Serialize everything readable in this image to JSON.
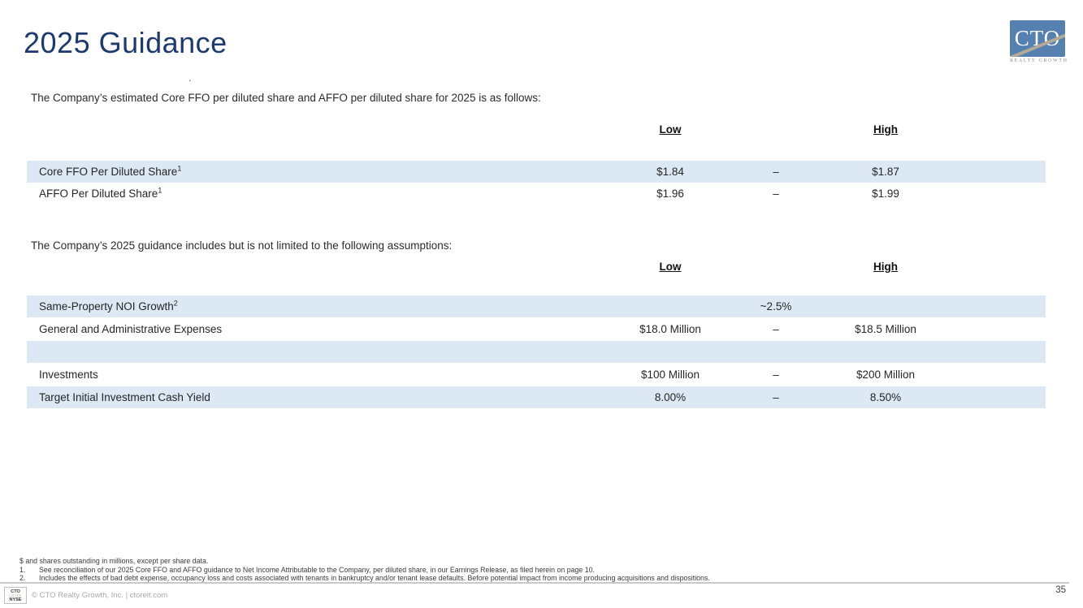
{
  "slide": {
    "title": "2025 Guidance",
    "page_number": "35",
    "stray_mark": "."
  },
  "logo": {
    "text": "CTO",
    "subtext": "REALTY GROWTH",
    "box_color": "#5580b0",
    "stripe_color": "#b3a999"
  },
  "section1": {
    "intro": "The Company’s estimated Core FFO per diluted share and AFFO per diluted share for 2025 is as follows:",
    "columns": {
      "low": "Low",
      "high": "High"
    },
    "rows": [
      {
        "label": "Core FFO Per Diluted Share",
        "sup": "1",
        "low": "$1.84",
        "dash": "–",
        "high": "$1.87"
      },
      {
        "label": "AFFO Per Diluted Share",
        "sup": "1",
        "low": "$1.96",
        "dash": "–",
        "high": "$1.99"
      }
    ]
  },
  "section2": {
    "intro": "The Company’s 2025 guidance includes but is not limited to the following assumptions:",
    "columns": {
      "low": "Low",
      "high": "High"
    },
    "rows": [
      {
        "label": "Same-Property NOI Growth",
        "sup": "2",
        "low": "",
        "dash": "~2.5%",
        "high": ""
      },
      {
        "label": "General and Administrative Expenses",
        "sup": "",
        "low": "$18.0 Million",
        "dash": "–",
        "high": "$18.5 Million"
      },
      {
        "label": "",
        "sup": "",
        "low": "",
        "dash": "",
        "high": ""
      },
      {
        "label": "Investments",
        "sup": "",
        "low": "$100 Million",
        "dash": "–",
        "high": "$200 Million"
      },
      {
        "label": "Target Initial Investment Cash Yield",
        "sup": "",
        "low": "8.00%",
        "dash": "–",
        "high": "8.50%"
      }
    ]
  },
  "footnotes": {
    "general": "$ and shares outstanding in millions, except per share data.",
    "items": [
      {
        "num": "1.",
        "text": "See reconciliation of our 2025 Core FFO and AFFO guidance to Net Income Attributable to the Company, per diluted share, in our Earnings Release, as filed herein on page 10."
      },
      {
        "num": "2.",
        "text": "Includes the effects of bad debt expense, occupancy loss and costs associated with tenants in bankruptcy and/or tenant lease defaults. Before potential impact from income producing acquisitions and dispositions."
      }
    ]
  },
  "footer": {
    "badge": {
      "line1": "CTO",
      "line2": "LISTED",
      "line3": "NYSE"
    },
    "copyright": "© CTO Realty Growth, Inc. | ctoreit.com"
  },
  "colors": {
    "title_navy": "#1e3a6d",
    "row_blue": "#dce8f3",
    "divider_gray": "#c9c9c9"
  }
}
